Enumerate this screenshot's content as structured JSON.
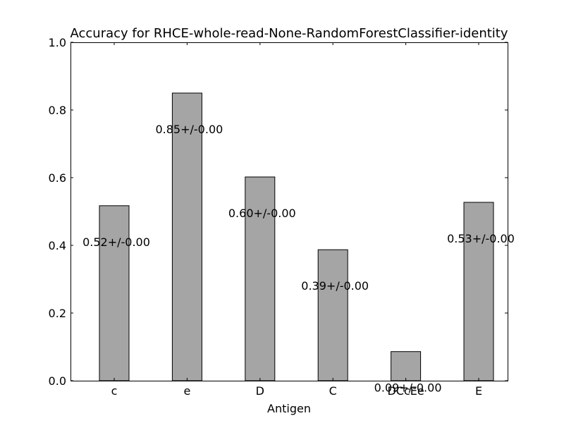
{
  "chart_data": {
    "type": "bar",
    "title": "Accuracy for RHCE-whole-read-None-RandomForestClassifier-identity",
    "xlabel": "Antigen",
    "ylabel": "",
    "categories": [
      "c",
      "e",
      "D",
      "C",
      "DCcEe",
      "E"
    ],
    "values": [
      0.517,
      0.85,
      0.602,
      0.387,
      0.086,
      0.527
    ],
    "value_labels": [
      "0.52+/-0.00",
      "0.85+/-0.00",
      "0.60+/-0.00",
      "0.39+/-0.00",
      "0.09+/-0.00",
      "0.53+/-0.00"
    ],
    "ylim": [
      0,
      1.0
    ],
    "yticks": [
      "0.0",
      "0.2",
      "0.4",
      "0.6",
      "0.8",
      "1.0"
    ],
    "grid": false,
    "legend": "none",
    "bar_color": "#a5a5a5",
    "edge_color": "#000000"
  }
}
